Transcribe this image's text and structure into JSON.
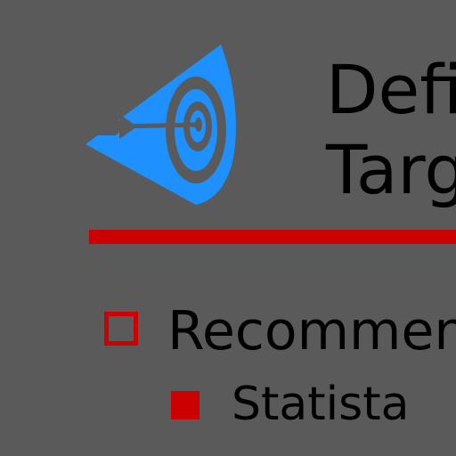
{
  "slide": {
    "title_line_1": "Defi",
    "title_line_2": "Targ",
    "bullets": [
      {
        "label": "Recommen"
      },
      {
        "label": "Statista"
      }
    ]
  },
  "icons": {
    "logo": "target-arrow-icon",
    "bullet_level_1": "hollow-square-icon",
    "bullet_level_2": "filled-square-icon"
  },
  "colors": {
    "background": "#5a5a5a",
    "accent_red": "#cc0000",
    "logo_blue": "#1e90ff",
    "logo_gray": "#5a5a5a",
    "text": "#000000"
  }
}
